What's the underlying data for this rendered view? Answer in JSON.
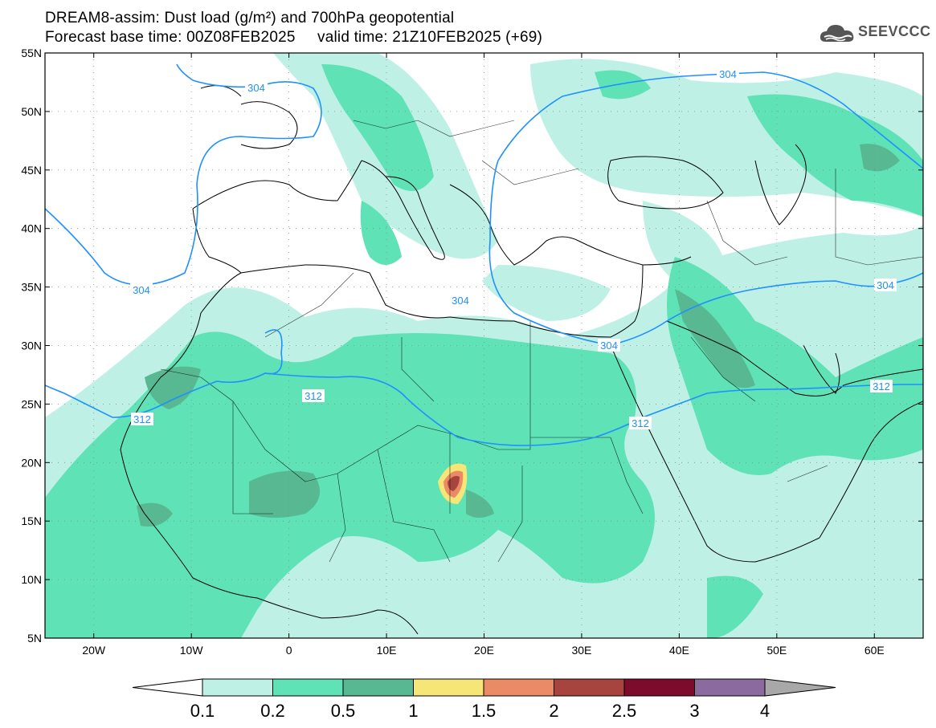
{
  "title": {
    "line1": "DREAM8-assim: Dust load (g/m²) and 700hPa geopotential",
    "line2": "Forecast base time: 00Z08FEB2025     valid time: 21Z10FEB2025 (+69)"
  },
  "logo": {
    "text": "SEEVCCC",
    "icon": "cloud-icon"
  },
  "map": {
    "lon_range": [
      -25,
      65
    ],
    "lat_range": [
      5,
      55
    ],
    "lat_ticks": [
      "55N",
      "50N",
      "45N",
      "40N",
      "35N",
      "30N",
      "25N",
      "20N",
      "15N",
      "10N",
      "5N"
    ],
    "lon_ticks": [
      "20W",
      "10W",
      "0",
      "10E",
      "20E",
      "30E",
      "40E",
      "50E",
      "60E"
    ],
    "contours": [
      {
        "value": "304",
        "color": "#1e90ff"
      },
      {
        "value": "312",
        "color": "#1e90ff"
      }
    ],
    "contour_label_values": [
      "304",
      "304",
      "304",
      "304",
      "304",
      "312",
      "312",
      "312",
      "312"
    ]
  },
  "colorbar": {
    "labels": [
      "0.1",
      "0.2",
      "0.5",
      "1",
      "1.5",
      "2",
      "2.5",
      "3",
      "4"
    ],
    "colors": [
      "#ffffff",
      "#bff0e6",
      "#5fe2b6",
      "#57b891",
      "#f5e677",
      "#eb8b66",
      "#a8443e",
      "#7c0b2c",
      "#8b6aa0",
      "#a8a8a8"
    ]
  }
}
